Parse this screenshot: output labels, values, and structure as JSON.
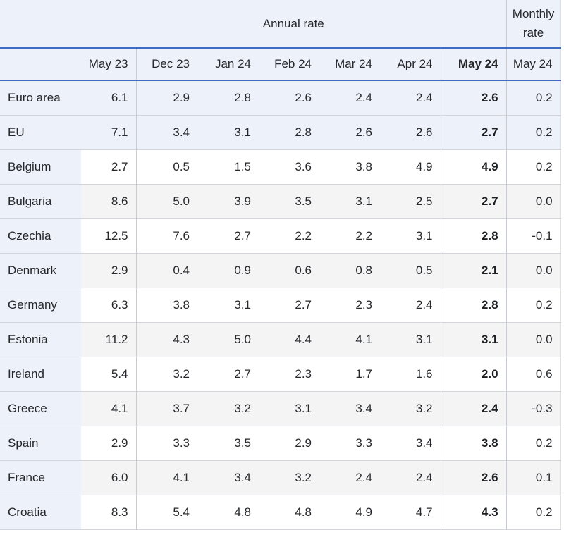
{
  "colors": {
    "accent_blue": "#3e6bbf",
    "header_tint": "#edf1fa",
    "stripe_gray": "#f4f4f5",
    "grid_line": "#c8ccd1",
    "text": "#26282b"
  },
  "chart_data": {
    "type": "table",
    "column_groups": [
      {
        "label": "Annual rate",
        "span": 7
      },
      {
        "label": "Monthly rate",
        "span": 1
      }
    ],
    "columns": [
      "May 23",
      "Dec 23",
      "Jan 24",
      "Feb 24",
      "Mar 24",
      "Apr 24",
      "May 24",
      "May 24"
    ],
    "emphasized_column": "May 24",
    "rows": [
      {
        "name": "Euro area",
        "highlight": true,
        "values": [
          "6.1",
          "2.9",
          "2.8",
          "2.6",
          "2.4",
          "2.4",
          "2.6",
          "0.2"
        ]
      },
      {
        "name": "EU",
        "highlight": true,
        "values": [
          "7.1",
          "3.4",
          "3.1",
          "2.8",
          "2.6",
          "2.6",
          "2.7",
          "0.2"
        ]
      },
      {
        "name": "Belgium",
        "highlight": false,
        "values": [
          "2.7",
          "0.5",
          "1.5",
          "3.6",
          "3.8",
          "4.9",
          "4.9",
          "0.2"
        ]
      },
      {
        "name": "Bulgaria",
        "highlight": false,
        "values": [
          "8.6",
          "5.0",
          "3.9",
          "3.5",
          "3.1",
          "2.5",
          "2.7",
          "0.0"
        ]
      },
      {
        "name": "Czechia",
        "highlight": false,
        "values": [
          "12.5",
          "7.6",
          "2.7",
          "2.2",
          "2.2",
          "3.1",
          "2.8",
          "-0.1"
        ]
      },
      {
        "name": "Denmark",
        "highlight": false,
        "values": [
          "2.9",
          "0.4",
          "0.9",
          "0.6",
          "0.8",
          "0.5",
          "2.1",
          "0.0"
        ]
      },
      {
        "name": "Germany",
        "highlight": false,
        "values": [
          "6.3",
          "3.8",
          "3.1",
          "2.7",
          "2.3",
          "2.4",
          "2.8",
          "0.2"
        ]
      },
      {
        "name": "Estonia",
        "highlight": false,
        "values": [
          "11.2",
          "4.3",
          "5.0",
          "4.4",
          "4.1",
          "3.1",
          "3.1",
          "0.0"
        ]
      },
      {
        "name": "Ireland",
        "highlight": false,
        "values": [
          "5.4",
          "3.2",
          "2.7",
          "2.3",
          "1.7",
          "1.6",
          "2.0",
          "0.6"
        ]
      },
      {
        "name": "Greece",
        "highlight": false,
        "values": [
          "4.1",
          "3.7",
          "3.2",
          "3.1",
          "3.4",
          "3.2",
          "2.4",
          "-0.3"
        ]
      },
      {
        "name": "Spain",
        "highlight": false,
        "values": [
          "2.9",
          "3.3",
          "3.5",
          "2.9",
          "3.3",
          "3.4",
          "3.8",
          "0.2"
        ]
      },
      {
        "name": "France",
        "highlight": false,
        "values": [
          "6.0",
          "4.1",
          "3.4",
          "3.2",
          "2.4",
          "2.4",
          "2.6",
          "0.1"
        ]
      },
      {
        "name": "Croatia",
        "highlight": false,
        "values": [
          "8.3",
          "5.4",
          "4.8",
          "4.8",
          "4.9",
          "4.7",
          "4.3",
          "0.2"
        ]
      }
    ]
  }
}
